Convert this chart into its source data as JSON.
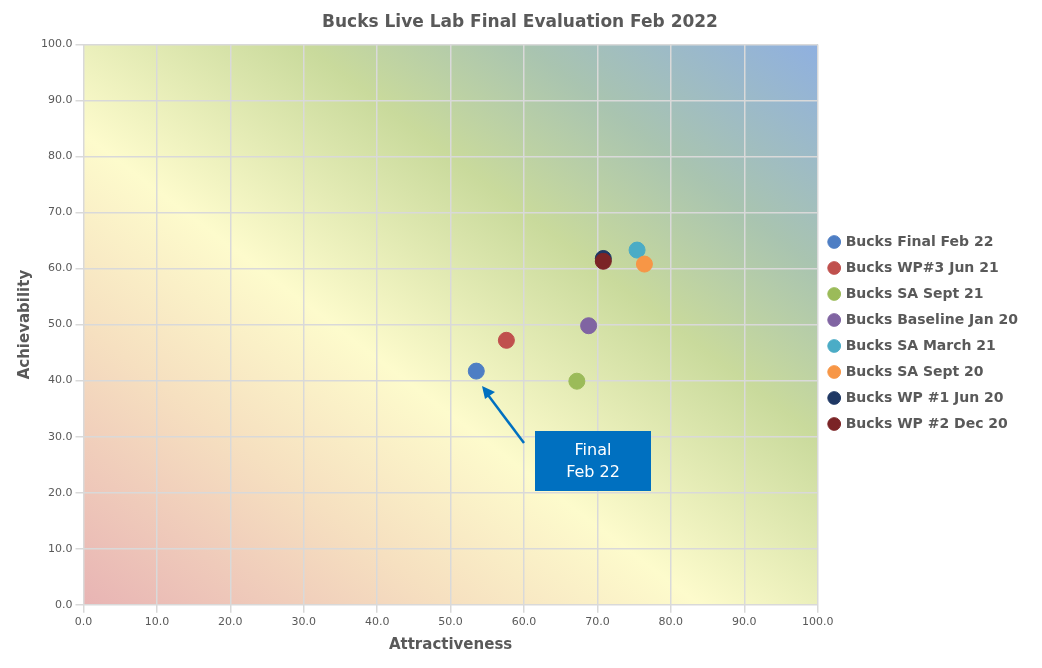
{
  "chart_data": {
    "type": "scatter",
    "title": "Bucks Live Lab Final Evaluation Feb 2022",
    "xlabel": "Attractiveness",
    "ylabel": "Achievability",
    "xlim": [
      0,
      100
    ],
    "ylim": [
      0,
      100
    ],
    "xticks": [
      {
        "value": 0,
        "label": "0.0"
      },
      {
        "value": 10,
        "label": "10.0"
      },
      {
        "value": 20,
        "label": "20.0"
      },
      {
        "value": 30,
        "label": "30.0"
      },
      {
        "value": 40,
        "label": "40.0"
      },
      {
        "value": 50,
        "label": "50.0"
      },
      {
        "value": 60,
        "label": "60.0"
      },
      {
        "value": 70,
        "label": "70.0"
      },
      {
        "value": 80,
        "label": "80.0"
      },
      {
        "value": 90,
        "label": "90.0"
      },
      {
        "value": 100,
        "label": "100.0"
      }
    ],
    "yticks": [
      {
        "value": 0,
        "label": "0.0"
      },
      {
        "value": 10,
        "label": "10.0"
      },
      {
        "value": 20,
        "label": "20.0"
      },
      {
        "value": 30,
        "label": "30.0"
      },
      {
        "value": 40,
        "label": "40.0"
      },
      {
        "value": 50,
        "label": "50.0"
      },
      {
        "value": 60,
        "label": "60.0"
      },
      {
        "value": 70,
        "label": "70.0"
      },
      {
        "value": 80,
        "label": "80.0"
      },
      {
        "value": 90,
        "label": "90.0"
      },
      {
        "value": 100,
        "label": "100.0"
      }
    ],
    "grid": true,
    "legend": "right",
    "marker": "circle",
    "series": [
      {
        "name": "Bucks Final Feb 22",
        "color": "#4e7ec4",
        "x": [
          53.5
        ],
        "values": [
          41.7
        ]
      },
      {
        "name": "Bucks WP#3 Jun 21",
        "color": "#c0504d",
        "x": [
          57.6
        ],
        "values": [
          47.2
        ]
      },
      {
        "name": "Bucks SA Sept 21",
        "color": "#9bbb59",
        "x": [
          67.2
        ],
        "values": [
          39.9
        ]
      },
      {
        "name": "Bucks Baseline Jan 20",
        "color": "#8064a2",
        "x": [
          68.8
        ],
        "values": [
          49.8
        ]
      },
      {
        "name": "Bucks SA March 21",
        "color": "#4bacc6",
        "x": [
          75.4
        ],
        "values": [
          63.3
        ]
      },
      {
        "name": "Bucks SA Sept 20",
        "color": "#f79646",
        "x": [
          76.4
        ],
        "values": [
          60.8
        ]
      },
      {
        "name": "Bucks WP #1 Jun 20",
        "color": "#1f3864",
        "x": [
          70.8
        ],
        "values": [
          61.8
        ]
      },
      {
        "name": "Bucks WP #2 Dec 20",
        "color": "#7b2426",
        "x": [
          70.8
        ],
        "values": [
          61.3
        ]
      }
    ],
    "annotations": [
      "Final\nFeb 22"
    ]
  }
}
